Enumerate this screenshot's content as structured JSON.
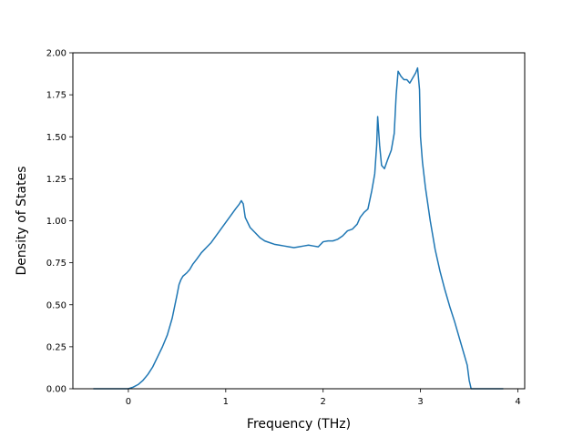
{
  "chart_data": {
    "type": "line",
    "title": "",
    "xlabel": "Frequency (THz)",
    "ylabel": "Density of States",
    "xlim": [
      -0.57,
      4.07
    ],
    "ylim": [
      0.0,
      2.0
    ],
    "xticks": [
      0,
      1,
      2,
      3,
      4
    ],
    "xtick_labels": [
      "0",
      "1",
      "2",
      "3",
      "4"
    ],
    "yticks": [
      0.0,
      0.25,
      0.5,
      0.75,
      1.0,
      1.25,
      1.5,
      1.75,
      2.0
    ],
    "ytick_labels": [
      "0.00",
      "0.25",
      "0.50",
      "0.75",
      "1.00",
      "1.25",
      "1.50",
      "1.75",
      "2.00"
    ],
    "grid": false,
    "legend": false,
    "line_color": "#1f77b4",
    "series": [
      {
        "x": [
          -0.36,
          -0.2,
          0.0,
          0.05,
          0.1,
          0.15,
          0.2,
          0.25,
          0.3,
          0.35,
          0.4,
          0.45,
          0.5,
          0.52,
          0.54,
          0.56,
          0.58,
          0.6,
          0.63,
          0.66,
          0.7,
          0.75,
          0.8,
          0.85,
          0.9,
          0.95,
          1.0,
          1.05,
          1.1,
          1.14,
          1.16,
          1.18,
          1.2,
          1.25,
          1.3,
          1.35,
          1.4,
          1.45,
          1.5,
          1.55,
          1.6,
          1.65,
          1.7,
          1.75,
          1.8,
          1.85,
          1.9,
          1.95,
          2.0,
          2.05,
          2.1,
          2.15,
          2.2,
          2.25,
          2.3,
          2.35,
          2.38,
          2.42,
          2.46,
          2.5,
          2.53,
          2.55,
          2.56,
          2.58,
          2.6,
          2.63,
          2.66,
          2.7,
          2.73,
          2.75,
          2.77,
          2.8,
          2.83,
          2.86,
          2.89,
          2.92,
          2.95,
          2.97,
          2.99,
          3.0,
          3.02,
          3.05,
          3.1,
          3.15,
          3.2,
          3.25,
          3.3,
          3.35,
          3.4,
          3.45,
          3.48,
          3.5,
          3.52,
          3.6,
          3.7,
          3.85
        ],
        "y": [
          0.0,
          0.0,
          0.0,
          0.01,
          0.025,
          0.05,
          0.085,
          0.13,
          0.19,
          0.25,
          0.32,
          0.42,
          0.56,
          0.62,
          0.65,
          0.67,
          0.68,
          0.69,
          0.71,
          0.74,
          0.77,
          0.81,
          0.84,
          0.87,
          0.91,
          0.95,
          0.99,
          1.03,
          1.07,
          1.1,
          1.12,
          1.1,
          1.02,
          0.96,
          0.93,
          0.9,
          0.88,
          0.87,
          0.86,
          0.855,
          0.85,
          0.845,
          0.84,
          0.845,
          0.85,
          0.855,
          0.85,
          0.845,
          0.875,
          0.88,
          0.88,
          0.89,
          0.91,
          0.94,
          0.95,
          0.98,
          1.02,
          1.05,
          1.07,
          1.18,
          1.28,
          1.45,
          1.62,
          1.45,
          1.33,
          1.31,
          1.36,
          1.42,
          1.52,
          1.75,
          1.89,
          1.86,
          1.84,
          1.84,
          1.82,
          1.85,
          1.88,
          1.91,
          1.78,
          1.5,
          1.35,
          1.2,
          1.0,
          0.83,
          0.7,
          0.59,
          0.49,
          0.4,
          0.3,
          0.2,
          0.14,
          0.05,
          0.0,
          0.0,
          0.0,
          0.0
        ]
      }
    ]
  }
}
